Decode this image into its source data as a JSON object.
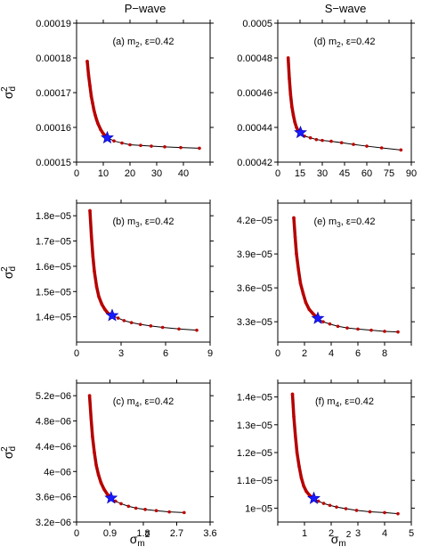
{
  "column_titles": [
    "P−wave",
    "S−wave"
  ],
  "ylabel": "σd2",
  "xlabel": "σm2",
  "chart_data": [
    {
      "id": "a",
      "type": "line",
      "column": 0,
      "row": 0,
      "annotation": {
        "prefix": "(a) m",
        "sub": "2",
        "suffix": ", ε=0.42"
      },
      "xlim": [
        0,
        50
      ],
      "ylim": [
        0.00015,
        0.00019
      ],
      "xticks": [
        0,
        10,
        20,
        30,
        40,
        50
      ],
      "xticklabels": [
        "0",
        "10",
        "20",
        "30",
        "40",
        ""
      ],
      "yticks": [
        0.00015,
        0.00016,
        0.00017,
        0.00018,
        0.00019
      ],
      "yticklabels": [
        "0.00015",
        "0.00016",
        "0.00017",
        "0.00018",
        "0.00019"
      ],
      "series": [
        {
          "x": [
            4,
            4.5,
            5,
            5.5,
            6,
            6.5,
            7,
            7.5,
            8,
            9,
            10,
            11.5,
            14,
            17,
            20,
            24,
            28,
            33,
            39,
            46
          ],
          "y": [
            0.000179,
            0.000175,
            0.000172,
            0.000169,
            0.000167,
            0.000165,
            0.0001635,
            0.0001622,
            0.0001611,
            0.0001594,
            0.0001582,
            0.000157,
            0.0001561,
            0.0001555,
            0.000155,
            0.0001548,
            0.0001546,
            0.0001544,
            0.0001542,
            0.000154
          ]
        }
      ],
      "highlight": {
        "x": 11.5,
        "y": 0.000157
      }
    },
    {
      "id": "d",
      "type": "line",
      "column": 1,
      "row": 0,
      "annotation": {
        "prefix": "(d) m",
        "sub": "2",
        "suffix": ", ε=0.42"
      },
      "xlim": [
        0,
        90
      ],
      "ylim": [
        0.00042,
        0.0005
      ],
      "xticks": [
        0,
        15,
        30,
        45,
        60,
        75,
        90
      ],
      "xticklabels": [
        "0",
        "15",
        "30",
        "45",
        "60",
        "75",
        "90"
      ],
      "yticks": [
        0.00042,
        0.00044,
        0.00046,
        0.00048,
        0.0005
      ],
      "yticklabels": [
        "0.00042",
        "0.00044",
        "0.00046",
        "0.00048",
        "0.0005"
      ],
      "series": [
        {
          "x": [
            7,
            7.8,
            8.6,
            9.5,
            10.5,
            11.5,
            12.6,
            13.8,
            15.3,
            18,
            22,
            26,
            30,
            36,
            43,
            51,
            60,
            70,
            83
          ],
          "y": [
            0.00048,
            0.000468,
            0.000459,
            0.000452,
            0.000447,
            0.000443,
            0.00044,
            0.000438,
            0.000437,
            0.000435,
            0.000434,
            0.000433,
            0.0004325,
            0.000432,
            0.0004312,
            0.0004302,
            0.0004292,
            0.0004282,
            0.000427
          ]
        }
      ],
      "highlight": {
        "x": 15.3,
        "y": 0.000437
      }
    },
    {
      "id": "b",
      "type": "line",
      "column": 0,
      "row": 1,
      "annotation": {
        "prefix": "(b) m",
        "sub": "3",
        "suffix": ", ε=0.42"
      },
      "xlim": [
        0,
        9
      ],
      "ylim": [
        1.3e-05,
        1.85e-05
      ],
      "xticks": [
        0,
        3,
        6,
        9
      ],
      "xticklabels": [
        "0",
        "3",
        "6",
        "9"
      ],
      "yticks": [
        1.4e-05,
        1.5e-05,
        1.6e-05,
        1.7e-05,
        1.8e-05
      ],
      "yticklabels": [
        "1.4e−05",
        "1.5e−05",
        "1.6e−05",
        "1.7e−05",
        "1.8e−05"
      ],
      "series": [
        {
          "x": [
            0.9,
            1.0,
            1.1,
            1.2,
            1.35,
            1.5,
            1.7,
            1.9,
            2.1,
            2.4,
            2.8,
            3.2,
            3.7,
            4.3,
            5,
            5.8,
            6.9,
            8.1
          ],
          "y": [
            1.82e-05,
            1.72e-05,
            1.64e-05,
            1.58e-05,
            1.52e-05,
            1.48e-05,
            1.45e-05,
            1.43e-05,
            1.415e-05,
            1.405e-05,
            1.395e-05,
            1.385e-05,
            1.377e-05,
            1.37e-05,
            1.364e-05,
            1.358e-05,
            1.352e-05,
            1.347e-05
          ]
        }
      ],
      "highlight": {
        "x": 2.4,
        "y": 1.405e-05
      }
    },
    {
      "id": "e",
      "type": "line",
      "column": 1,
      "row": 1,
      "annotation": {
        "prefix": "(e) m",
        "sub": "3",
        "suffix": ", ε=0.42"
      },
      "xlim": [
        0,
        10
      ],
      "ylim": [
        3.12e-05,
        4.35e-05
      ],
      "xticks": [
        0,
        2,
        4,
        6,
        8,
        10
      ],
      "xticklabels": [
        "0",
        "2",
        "4",
        "6",
        "8",
        ""
      ],
      "yticks": [
        3.3e-05,
        3.6e-05,
        3.9e-05,
        4.2e-05
      ],
      "yticklabels": [
        "3.3e−05",
        "3.6e−05",
        "3.9e−05",
        "4.2e−05"
      ],
      "series": [
        {
          "x": [
            1.2,
            1.3,
            1.4,
            1.55,
            1.7,
            1.9,
            2.1,
            2.35,
            2.65,
            3.0,
            3.4,
            3.9,
            4.5,
            5.2,
            6.0,
            7.0,
            8.0,
            9.0
          ],
          "y": [
            4.22e-05,
            4.05e-05,
            3.9e-05,
            3.76e-05,
            3.64e-05,
            3.55e-05,
            3.47e-05,
            3.41e-05,
            3.37e-05,
            3.33e-05,
            3.3e-05,
            3.28e-05,
            3.26e-05,
            3.245e-05,
            3.235e-05,
            3.225e-05,
            3.215e-05,
            3.21e-05
          ]
        }
      ],
      "highlight": {
        "x": 3.0,
        "y": 3.33e-05
      }
    },
    {
      "id": "c",
      "type": "line",
      "column": 0,
      "row": 2,
      "annotation": {
        "prefix": "(c) m",
        "sub": "4",
        "suffix": ", ε=0.42"
      },
      "xlim": [
        0,
        3.6
      ],
      "ylim": [
        3.2e-06,
        5.4e-06
      ],
      "xticks": [
        0,
        0.9,
        1.8,
        2.7,
        3.6
      ],
      "xticklabels": [
        "0",
        "0.9",
        "1.8",
        "2.7",
        "3.6"
      ],
      "yticks": [
        3.2e-06,
        3.6e-06,
        4e-06,
        4.4e-06,
        4.8e-06,
        5.2e-06
      ],
      "yticklabels": [
        "3.2e−06",
        "3.6e−06",
        "4e−06",
        "4.4e−06",
        "4.8e−06",
        "5.2e−06"
      ],
      "series": [
        {
          "x": [
            0.35,
            0.39,
            0.43,
            0.48,
            0.53,
            0.59,
            0.66,
            0.74,
            0.83,
            0.93,
            1.05,
            1.2,
            1.4,
            1.6,
            1.85,
            2.15,
            2.5,
            2.9
          ],
          "y": [
            5.2e-06,
            4.85e-06,
            4.55e-06,
            4.3e-06,
            4.1e-06,
            3.95e-06,
            3.82e-06,
            3.72e-06,
            3.64e-06,
            3.58e-06,
            3.53e-06,
            3.49e-06,
            3.45e-06,
            3.42e-06,
            3.4e-06,
            3.38e-06,
            3.36e-06,
            3.35e-06
          ]
        }
      ],
      "highlight": {
        "x": 0.93,
        "y": 3.58e-06
      }
    },
    {
      "id": "f",
      "type": "line",
      "column": 1,
      "row": 2,
      "annotation": {
        "prefix": "(f) m",
        "sub": "4",
        "suffix": ", ε=0.42"
      },
      "xlim": [
        0,
        5
      ],
      "ylim": [
        9.5e-06,
        1.45e-05
      ],
      "xticks": [
        0,
        1,
        2,
        3,
        4,
        5
      ],
      "xticklabels": [
        "",
        "1",
        "2",
        "3",
        "4",
        "5"
      ],
      "yticks": [
        1e-05,
        1.1e-05,
        1.2e-05,
        1.3e-05,
        1.4e-05
      ],
      "yticklabels": [
        "1e−05",
        "1.1e−05",
        "1.2e−05",
        "1.3e−05",
        "1.4e−05"
      ],
      "series": [
        {
          "x": [
            0.55,
            0.6,
            0.66,
            0.72,
            0.8,
            0.88,
            0.97,
            1.07,
            1.2,
            1.35,
            1.52,
            1.72,
            1.95,
            2.2,
            2.55,
            2.95,
            3.45,
            4.0,
            4.5
          ],
          "y": [
            1.41e-05,
            1.33e-05,
            1.26e-05,
            1.2e-05,
            1.15e-05,
            1.11e-05,
            1.08e-05,
            1.06e-05,
            1.045e-05,
            1.035e-05,
            1.025e-05,
            1.017e-05,
            1.01e-05,
            1.004e-05,
            9.98e-06,
            9.92e-06,
            9.87e-06,
            9.84e-06,
            9.8e-06
          ]
        }
      ],
      "highlight": {
        "x": 1.35,
        "y": 1.035e-05
      }
    }
  ]
}
